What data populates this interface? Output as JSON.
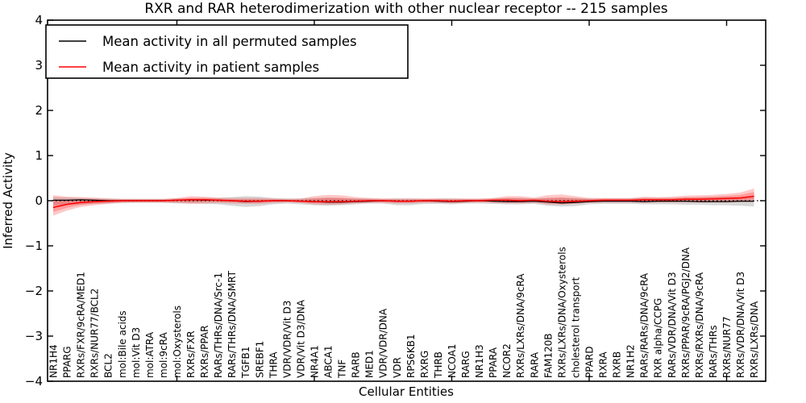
{
  "chart_data": {
    "type": "line",
    "title": "RXR and RAR heterodimerization with other nuclear receptor -- 215 samples",
    "xlabel": "Cellular Entities",
    "ylabel": "Inferred Activity",
    "ylim": [
      -4,
      4
    ],
    "grid": false,
    "legend_position": "upper left",
    "yticks": [
      4,
      3,
      2,
      1,
      0,
      -1,
      -2,
      -3,
      -4
    ],
    "ytick_labels": [
      "4",
      "3",
      "2",
      "1",
      "0",
      "−1",
      "−2",
      "−3",
      "−4"
    ],
    "xtick_positions": [
      10,
      20,
      30,
      40,
      50
    ],
    "categories": [
      "NR1H4",
      "PPARG",
      "RXRs/FXR/9cRA/MED1",
      "RXRs/NUR77/BCL2",
      "BCL2",
      "mol:Bile acids",
      "mol:Vit D3",
      "mol:ATRA",
      "mol:9cRA",
      "mol:Oxysterols",
      "RXRs/FXR",
      "RXRs/PPAR",
      "RARs/THRs/DNA/Src-1",
      "RARs/THRs/DNA/SMRT",
      "TGFB1",
      "SREBF1",
      "THRA",
      "VDR/VDR/Vit D3",
      "VDR/Vit D3/DNA",
      "NR4A1",
      "ABCA1",
      "TNF",
      "RARB",
      "MED1",
      "VDR/VDR/DNA",
      "VDR",
      "RPS6KB1",
      "RXRG",
      "THRB",
      "NCOA1",
      "RARG",
      "NR1H3",
      "PPARA",
      "NCOR2",
      "RXRs/LXRs/DNA/9cRA",
      "RARA",
      "FAM120B",
      "RXRs/LXRs/DNA/Oxysterols",
      "cholesterol transport",
      "PPARD",
      "RXRA",
      "RXRB",
      "NR1H2",
      "RARs/RARs/DNA/9cRA",
      "RXR alpha/CCPG",
      "RARs/VDR/DNA/Vit D3",
      "RXRs/PPAR/9cRA/PGJ2/DNA",
      "RXRs/RXRs/DNA/9cRA",
      "RARs/THRs",
      "RXRs/NUR77",
      "RXRs/VDR/DNA/Vit D3",
      "RXRs/LXRs/DNA"
    ],
    "series": [
      {
        "name": "Mean activity in all permuted samples",
        "color": "#000000",
        "values": [
          0.01,
          0.01,
          0.02,
          0.01,
          0.0,
          0.0,
          0.0,
          0.0,
          0.0,
          0.01,
          0.02,
          0.01,
          0.01,
          0.0,
          -0.02,
          -0.01,
          0.0,
          0.0,
          -0.01,
          -0.02,
          -0.03,
          -0.03,
          -0.02,
          -0.01,
          0.0,
          -0.01,
          -0.01,
          0.0,
          -0.01,
          -0.02,
          -0.01,
          0.0,
          -0.01,
          -0.02,
          -0.02,
          -0.01,
          -0.03,
          -0.05,
          -0.04,
          -0.02,
          -0.01,
          -0.01,
          -0.01,
          -0.02,
          -0.01,
          -0.01,
          -0.01,
          -0.02,
          -0.02,
          -0.02,
          -0.01,
          -0.01
        ]
      },
      {
        "name": "Mean activity in patient samples",
        "color": "#ff0000",
        "values": [
          -0.15,
          -0.08,
          -0.04,
          -0.02,
          -0.01,
          0.0,
          0.0,
          0.0,
          0.0,
          0.01,
          0.02,
          0.02,
          0.01,
          0.0,
          -0.01,
          -0.01,
          0.0,
          0.0,
          -0.01,
          -0.02,
          -0.02,
          -0.02,
          -0.01,
          0.0,
          0.0,
          -0.01,
          -0.01,
          0.0,
          0.0,
          -0.01,
          0.0,
          0.0,
          0.01,
          0.01,
          0.0,
          0.01,
          -0.01,
          -0.02,
          -0.01,
          0.0,
          0.01,
          0.01,
          0.01,
          0.02,
          0.02,
          0.02,
          0.03,
          0.03,
          0.04,
          0.05,
          0.06,
          0.1
        ]
      }
    ],
    "bands": [
      {
        "name": "permuted-samples-range",
        "color": "rgba(125,125,125,0.30)",
        "upper": [
          0.08,
          0.07,
          0.06,
          0.05,
          0.05,
          0.04,
          0.04,
          0.04,
          0.04,
          0.05,
          0.05,
          0.06,
          0.06,
          0.08,
          0.1,
          0.09,
          0.06,
          0.05,
          0.05,
          0.06,
          0.07,
          0.06,
          0.05,
          0.05,
          0.04,
          0.05,
          0.05,
          0.04,
          0.05,
          0.05,
          0.04,
          0.04,
          0.05,
          0.06,
          0.06,
          0.05,
          0.06,
          0.07,
          0.06,
          0.05,
          0.05,
          0.05,
          0.05,
          0.06,
          0.06,
          0.06,
          0.07,
          0.07,
          0.08,
          0.08,
          0.08,
          0.09
        ],
        "lower": [
          -0.1,
          -0.09,
          -0.08,
          -0.07,
          -0.06,
          -0.05,
          -0.05,
          -0.05,
          -0.05,
          -0.06,
          -0.06,
          -0.07,
          -0.08,
          -0.11,
          -0.14,
          -0.12,
          -0.08,
          -0.06,
          -0.08,
          -0.1,
          -0.11,
          -0.1,
          -0.08,
          -0.06,
          -0.06,
          -0.1,
          -0.1,
          -0.07,
          -0.07,
          -0.08,
          -0.06,
          -0.06,
          -0.07,
          -0.08,
          -0.08,
          -0.07,
          -0.11,
          -0.13,
          -0.12,
          -0.08,
          -0.07,
          -0.07,
          -0.07,
          -0.08,
          -0.08,
          -0.08,
          -0.09,
          -0.09,
          -0.1,
          -0.1,
          -0.11,
          -0.13
        ]
      },
      {
        "name": "patient-samples-range",
        "color": "rgba(255,35,35,0.25)",
        "upper": [
          0.12,
          0.09,
          0.08,
          0.07,
          0.05,
          0.04,
          0.04,
          0.04,
          0.04,
          0.06,
          0.1,
          0.09,
          0.07,
          0.06,
          0.06,
          0.06,
          0.05,
          0.04,
          0.05,
          0.1,
          0.13,
          0.12,
          0.08,
          0.06,
          0.05,
          0.05,
          0.05,
          0.05,
          0.05,
          0.05,
          0.05,
          0.05,
          0.06,
          0.1,
          0.1,
          0.07,
          0.12,
          0.14,
          0.1,
          0.06,
          0.06,
          0.06,
          0.06,
          0.09,
          0.08,
          0.09,
          0.11,
          0.12,
          0.13,
          0.15,
          0.18,
          0.27
        ],
        "lower": [
          -0.33,
          -0.22,
          -0.14,
          -0.1,
          -0.07,
          -0.05,
          -0.04,
          -0.04,
          -0.04,
          -0.05,
          -0.07,
          -0.06,
          -0.05,
          -0.06,
          -0.07,
          -0.07,
          -0.05,
          -0.04,
          -0.05,
          -0.08,
          -0.09,
          -0.08,
          -0.06,
          -0.05,
          -0.05,
          -0.06,
          -0.06,
          -0.05,
          -0.05,
          -0.06,
          -0.05,
          -0.04,
          -0.05,
          -0.06,
          -0.06,
          -0.05,
          -0.08,
          -0.09,
          -0.07,
          -0.05,
          -0.04,
          -0.04,
          -0.04,
          -0.05,
          -0.04,
          -0.04,
          -0.04,
          -0.04,
          -0.04,
          -0.04,
          -0.03,
          -0.03
        ]
      }
    ],
    "zero_line": {
      "value": 0,
      "style": "dotted",
      "color": "#000000"
    }
  },
  "legend": {
    "entries": [
      {
        "label": "Mean activity in all permuted samples",
        "color": "#000000"
      },
      {
        "label": "Mean activity in patient samples",
        "color": "#ff0000"
      }
    ]
  }
}
